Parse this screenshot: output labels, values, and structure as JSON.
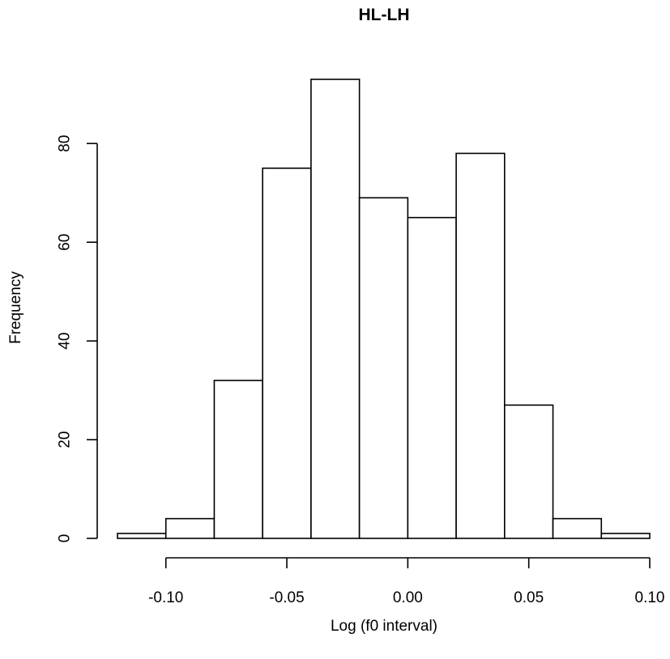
{
  "chart_data": {
    "type": "bar",
    "title": "HL-LH",
    "xlabel": "Log (f0 interval)",
    "ylabel": "Frequency",
    "bins": [
      {
        "x0": -0.12,
        "x1": -0.1,
        "count": 1
      },
      {
        "x0": -0.1,
        "x1": -0.08,
        "count": 4
      },
      {
        "x0": -0.08,
        "x1": -0.06,
        "count": 32
      },
      {
        "x0": -0.06,
        "x1": -0.04,
        "count": 75
      },
      {
        "x0": -0.04,
        "x1": -0.02,
        "count": 93
      },
      {
        "x0": -0.02,
        "x1": 0.0,
        "count": 69
      },
      {
        "x0": 0.0,
        "x1": 0.02,
        "count": 65
      },
      {
        "x0": 0.02,
        "x1": 0.04,
        "count": 78
      },
      {
        "x0": 0.04,
        "x1": 0.06,
        "count": 27
      },
      {
        "x0": 0.06,
        "x1": 0.08,
        "count": 4
      },
      {
        "x0": 0.08,
        "x1": 0.1,
        "count": 1
      }
    ],
    "xticks": [
      -0.1,
      -0.05,
      0.0,
      0.05,
      0.1
    ],
    "xtick_labels": [
      "-0.10",
      "-0.05",
      "0.00",
      "0.05",
      "0.10"
    ],
    "yticks": [
      0,
      20,
      40,
      60,
      80
    ],
    "ytick_labels": [
      "0",
      "20",
      "40",
      "60",
      "80"
    ],
    "xlim": [
      -0.12,
      0.1
    ],
    "ylim": [
      0,
      93
    ],
    "grid": false,
    "legend": "none",
    "bar_fill": "#ffffff",
    "bar_stroke": "#000000"
  }
}
